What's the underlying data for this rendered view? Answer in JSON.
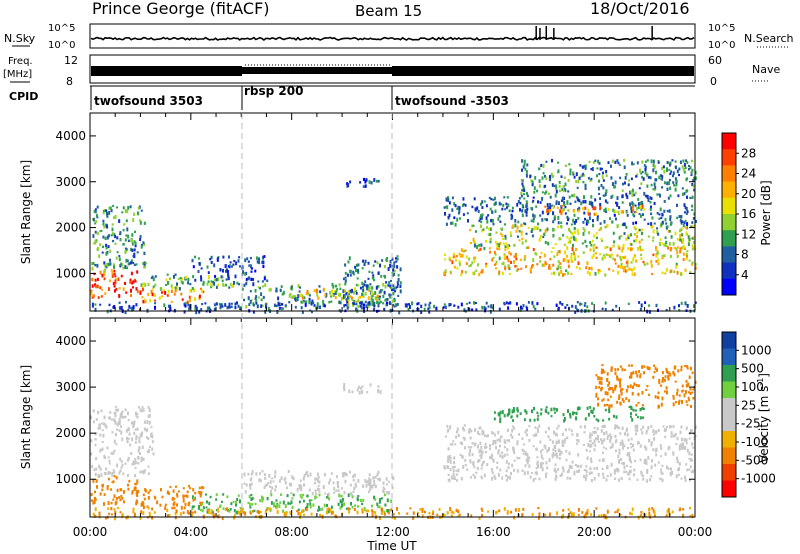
{
  "header": {
    "title": "Prince George (fitACF)",
    "beam": "Beam 15",
    "date": "18/Oct/2016"
  },
  "top_panels": {
    "nsky_label": "N.Sky",
    "nsky_tick_top": "10^5",
    "nsky_tick_bottom": "10^0",
    "nsearch_label": "N.Search",
    "nsearch_tick_top": "10^5",
    "nsearch_tick_bottom": "10^0",
    "freq_label": "Freq.",
    "freq_unit": "[MHz]",
    "freq_ticks": [
      "12",
      "8"
    ],
    "nave_label": "Nave",
    "nave_ticks": [
      "60",
      "0"
    ],
    "cpid_label": "CPID",
    "cpid_segments": [
      {
        "label": "twofsound 3503",
        "start_h": 0,
        "end_h": 6
      },
      {
        "label": "rbsp 200",
        "start_h": 6,
        "end_h": 12
      },
      {
        "label": "twofsound -3503",
        "start_h": 12,
        "end_h": 24
      }
    ]
  },
  "colorbars": {
    "power": {
      "label": "Power [dB]",
      "ticks": [
        "28",
        "24",
        "20",
        "16",
        "12",
        "8",
        "4"
      ],
      "colors": [
        "#ff0000",
        "#ff4000",
        "#ff8000",
        "#ffb000",
        "#e8e000",
        "#90d030",
        "#30a050",
        "#2060a0",
        "#1030c0",
        "#0000ff"
      ]
    },
    "velocity": {
      "label": "Velocity [m s",
      "label_sup": "-1",
      "label_close": "]",
      "ticks": [
        "1000",
        "500",
        "100",
        "25",
        "-25",
        "-100",
        "-500",
        "-1000"
      ],
      "colors": [
        "#1040a0",
        "#2060b8",
        "#30a050",
        "#70d040",
        "#c8c8c8",
        "#c8c8c8",
        "#f0b000",
        "#f08000",
        "#f04000",
        "#ff0000"
      ]
    }
  },
  "chart_data": [
    {
      "type": "heatmap",
      "name": "power",
      "ylabel": "Slant Range [km]",
      "xlabel": "Time UT",
      "x_ticks": [
        "00:00",
        "04:00",
        "08:00",
        "12:00",
        "16:00",
        "20:00",
        "00:00"
      ],
      "y_ticks": [
        "1000",
        "2000",
        "3000",
        "4000"
      ],
      "xlim_hours": [
        0,
        24
      ],
      "ylim_km": [
        180,
        4500
      ],
      "scale_label": "Power [dB]",
      "regions": [
        {
          "t0": 0.0,
          "t1": 2.0,
          "r0": 500,
          "r1": 1100,
          "v": 26
        },
        {
          "t0": 0.0,
          "t1": 2.2,
          "r0": 1100,
          "r1": 2500,
          "v": 10
        },
        {
          "t0": 2.0,
          "t1": 4.5,
          "r0": 400,
          "r1": 700,
          "v": 22
        },
        {
          "t0": 2.0,
          "t1": 6.0,
          "r0": 700,
          "r1": 1000,
          "v": 12
        },
        {
          "t0": 4.0,
          "t1": 7.0,
          "r0": 800,
          "r1": 1400,
          "v": 6
        },
        {
          "t0": 6.0,
          "t1": 12.0,
          "r0": 300,
          "r1": 800,
          "v": 10
        },
        {
          "t0": 8.0,
          "t1": 11.5,
          "r0": 400,
          "r1": 700,
          "v": 16
        },
        {
          "t0": 10.0,
          "t1": 12.3,
          "r0": 300,
          "r1": 1400,
          "v": 8
        },
        {
          "t0": 0.0,
          "t1": 24.0,
          "r0": 190,
          "r1": 400,
          "v": 6
        },
        {
          "t0": 10.0,
          "t1": 11.5,
          "r0": 2900,
          "r1": 3100,
          "v": 6
        },
        {
          "t0": 14.0,
          "t1": 24.0,
          "r0": 1000,
          "r1": 1600,
          "v": 18
        },
        {
          "t0": 15.0,
          "t1": 24.0,
          "r0": 1600,
          "r1": 2100,
          "v": 14
        },
        {
          "t0": 14.0,
          "t1": 24.0,
          "r0": 2100,
          "r1": 2700,
          "v": 7
        },
        {
          "t0": 17.0,
          "t1": 24.0,
          "r0": 2700,
          "r1": 3500,
          "v": 9
        },
        {
          "t0": 18.0,
          "t1": 22.0,
          "r0": 2300,
          "r1": 2500,
          "v": 20
        }
      ]
    },
    {
      "type": "heatmap",
      "name": "velocity",
      "ylabel": "Slant Range [km]",
      "xlabel": "Time UT",
      "x_ticks": [
        "00:00",
        "04:00",
        "08:00",
        "12:00",
        "16:00",
        "20:00",
        "00:00"
      ],
      "y_ticks": [
        "1000",
        "2000",
        "3000",
        "4000"
      ],
      "xlim_hours": [
        0,
        24
      ],
      "ylim_km": [
        180,
        4500
      ],
      "scale_label": "Velocity [m s-1]",
      "regions": [
        {
          "t0": 0.0,
          "t1": 2.0,
          "r0": 500,
          "r1": 1100,
          "v": -150
        },
        {
          "t0": 0.0,
          "t1": 2.5,
          "r0": 1100,
          "r1": 2600,
          "v": 0
        },
        {
          "t0": 2.0,
          "t1": 4.5,
          "r0": 400,
          "r1": 900,
          "v": -80
        },
        {
          "t0": 4.0,
          "t1": 12.0,
          "r0": 300,
          "r1": 700,
          "v": 60
        },
        {
          "t0": 6.0,
          "t1": 12.0,
          "r0": 700,
          "r1": 1200,
          "v": 0
        },
        {
          "t0": 0.0,
          "t1": 24.0,
          "r0": 190,
          "r1": 400,
          "v": -60
        },
        {
          "t0": 10.0,
          "t1": 11.5,
          "r0": 2900,
          "r1": 3100,
          "v": 0
        },
        {
          "t0": 14.0,
          "t1": 24.0,
          "r0": 1000,
          "r1": 2200,
          "v": 0
        },
        {
          "t0": 16.0,
          "t1": 22.0,
          "r0": 2300,
          "r1": 2600,
          "v": 80
        },
        {
          "t0": 20.0,
          "t1": 24.0,
          "r0": 2600,
          "r1": 3500,
          "v": -200
        }
      ]
    }
  ]
}
